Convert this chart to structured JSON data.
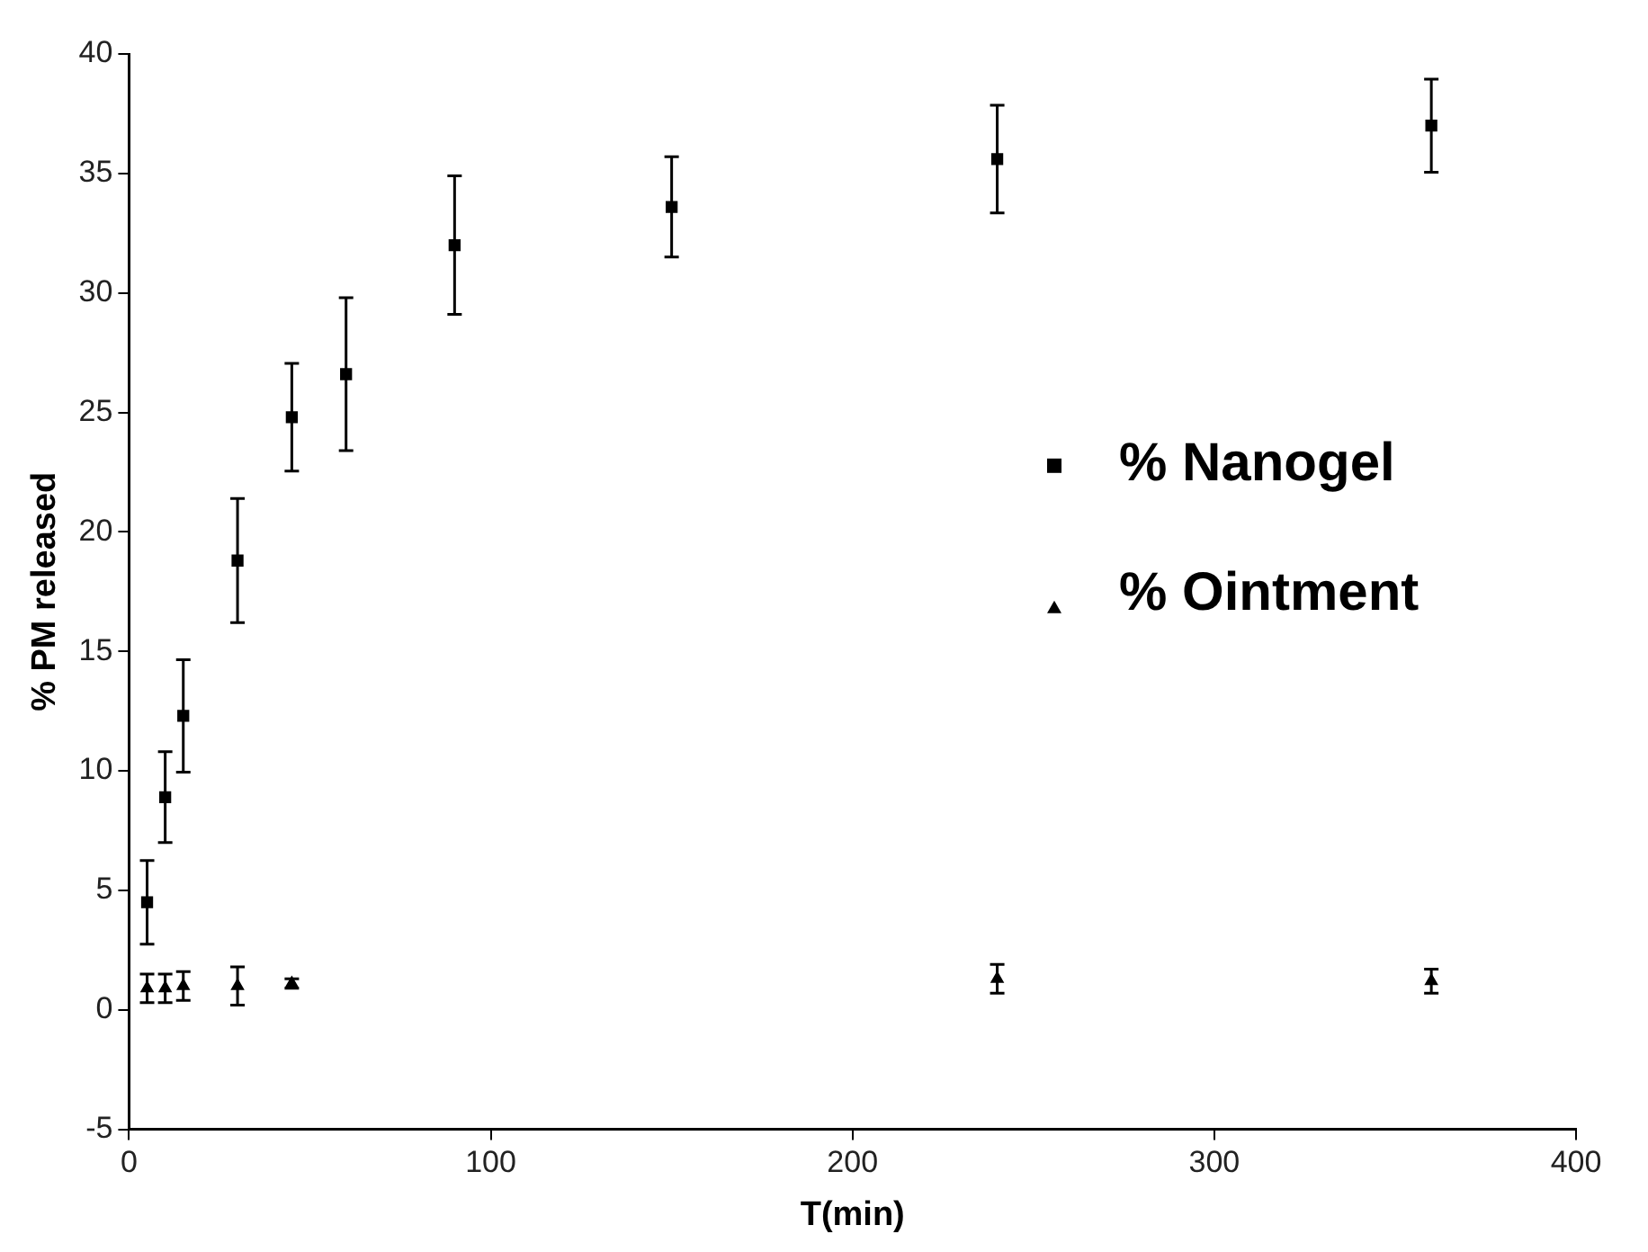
{
  "chart_data": {
    "type": "scatter",
    "xlabel": "T(min)",
    "ylabel": "% PM released",
    "xlim": [
      0,
      400
    ],
    "xticks": [
      0,
      100,
      200,
      300,
      400
    ],
    "ylim": [
      -5,
      40
    ],
    "yticks": [
      -5,
      0,
      5,
      10,
      15,
      20,
      25,
      30,
      35,
      40
    ],
    "grid": false,
    "legend": "right",
    "series": [
      {
        "name": "% Nanogel",
        "color": "#000000",
        "marker": "square",
        "x": [
          5,
          10,
          15,
          30,
          45,
          60,
          90,
          150,
          240,
          360
        ],
        "values": [
          4.5,
          8.9,
          12.3,
          18.8,
          24.8,
          26.6,
          32.0,
          33.6,
          35.6,
          37.0
        ],
        "errors": [
          1.75,
          1.9,
          2.35,
          2.6,
          2.25,
          3.2,
          2.9,
          2.1,
          2.25,
          1.95
        ]
      },
      {
        "name": "% Ointment",
        "color": "#000000",
        "marker": "triangle",
        "x": [
          5,
          10,
          15,
          30,
          45,
          240,
          360
        ],
        "values": [
          0.9,
          0.9,
          1.0,
          1.0,
          1.1,
          1.3,
          1.2
        ],
        "errors": [
          0.6,
          0.6,
          0.6,
          0.8,
          0.2,
          0.6,
          0.5
        ]
      }
    ]
  }
}
